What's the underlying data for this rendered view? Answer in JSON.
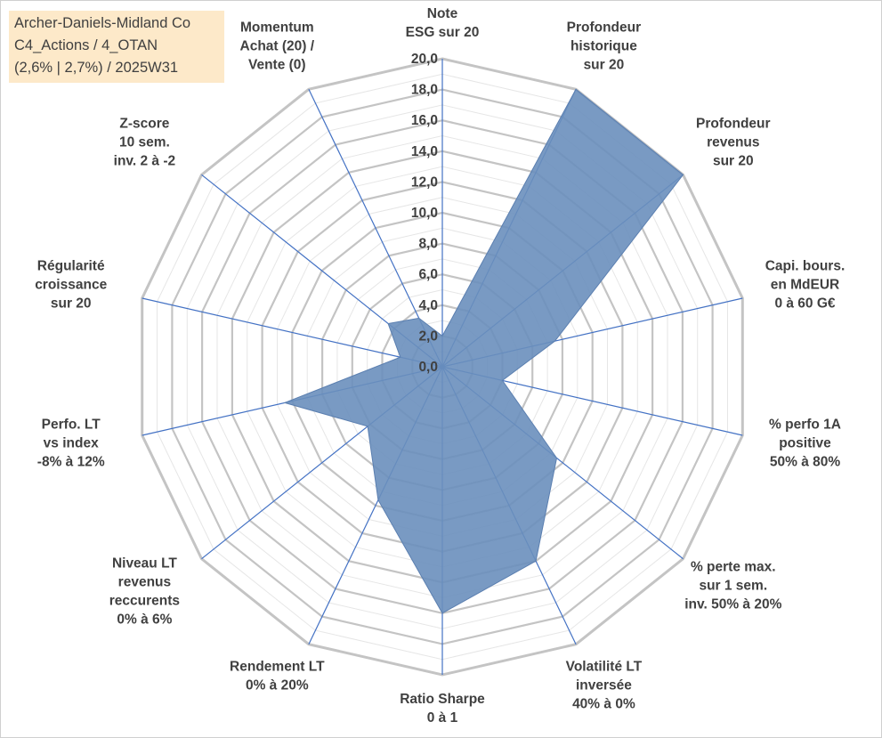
{
  "info": {
    "line1": "Archer-Daniels-Midland Co",
    "line2": "C4_Actions / 4_OTAN",
    "line3": "(2,6% | 2,7%) / 2025W31"
  },
  "colors": {
    "background": "#ffffff",
    "info_box": "#fde9c9",
    "grid": "#c4c4c4",
    "spoke": "#4472c4",
    "fill": "#6a8fbd",
    "text": "#404040"
  },
  "chart_data": {
    "type": "radar",
    "title": "",
    "rmin": 0,
    "rmax": 20,
    "ticks": [
      "0,0",
      "2,0",
      "4,0",
      "6,0",
      "8,0",
      "10,0",
      "12,0",
      "14,0",
      "16,0",
      "18,0",
      "20,0"
    ],
    "grid": true,
    "axes": [
      {
        "label": [
          "Note",
          "ESG sur 20"
        ],
        "value": 2
      },
      {
        "label": [
          "Profondeur",
          "historique",
          "sur 20"
        ],
        "value": 20
      },
      {
        "label": [
          "Profondeur",
          "revenus",
          "sur 20"
        ],
        "value": 20
      },
      {
        "label": [
          "Capi. bours.",
          "en MdEUR",
          "0 à 60 G€"
        ],
        "value": 7.5
      },
      {
        "label": [
          "% perfo 1A",
          "positive",
          "50% à 80%"
        ],
        "value": 4
      },
      {
        "label": [
          "% perte max.",
          "sur 1 sem.",
          "inv. 50% à 20%"
        ],
        "value": 9.5
      },
      {
        "label": [
          "Volatilité LT",
          "inversée",
          "40% à 0%"
        ],
        "value": 14
      },
      {
        "label": [
          "Ratio Sharpe",
          "0 à 1"
        ],
        "value": 16
      },
      {
        "label": [
          "Rendement LT",
          "0% à 20%"
        ],
        "value": 9.6
      },
      {
        "label": [
          "Niveau LT",
          "revenus",
          "reccurents",
          "0% à 6%"
        ],
        "value": 6.2
      },
      {
        "label": [
          "Perfo. LT",
          "vs index",
          "-8% à 12%"
        ],
        "value": 10.5
      },
      {
        "label": [
          "Régularité",
          "croissance",
          "sur 20"
        ],
        "value": 2.8
      },
      {
        "label": [
          "Z-score",
          "10 sem.",
          "inv. 2 à -2"
        ],
        "value": 4.5
      },
      {
        "label": [
          "Momentum",
          "Achat (20) /",
          "Vente (0)"
        ],
        "value": 3.5
      }
    ]
  }
}
